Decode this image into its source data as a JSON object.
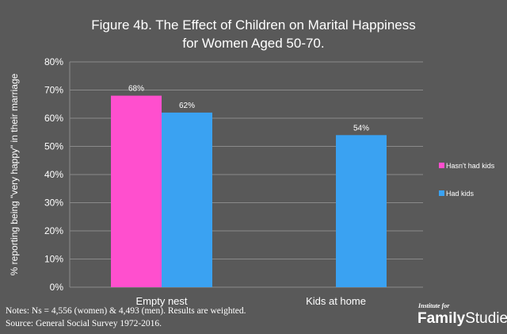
{
  "chart_data": {
    "type": "bar",
    "title_line1": "Figure 4b. The Effect of Children on Marital Happiness",
    "title_line2": "for Women Aged 50-70.",
    "ylabel": "% reporting being \"very happy\" in their marriage",
    "xlabel": "",
    "categories": [
      "Empty nest",
      "Kids at home"
    ],
    "series": [
      {
        "name": "Hasn't had kids",
        "color": "#ff4fce",
        "values": [
          68,
          null
        ]
      },
      {
        "name": "Had kids",
        "color": "#3aa2f2",
        "values": [
          62,
          54
        ]
      }
    ],
    "ylim": [
      0,
      80
    ],
    "yticks": [
      0,
      10,
      20,
      30,
      40,
      50,
      60,
      70,
      80
    ],
    "ytick_suffix": "%",
    "grid": true,
    "legend": "right"
  },
  "notes": {
    "line1": "Notes: Ns = 4,556 (women) & 4,493 (men). Results are weighted.",
    "line2": "Source: General Social Survey 1972-2016."
  },
  "logo": {
    "small": "Institute for",
    "bold": "Family",
    "regular": "Studies"
  }
}
